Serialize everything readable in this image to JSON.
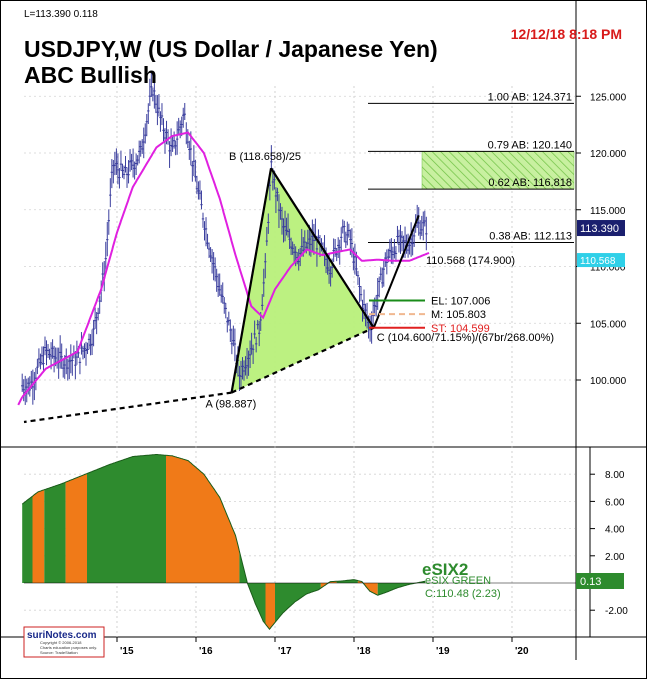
{
  "header": {
    "quote": "L=113.390  0.118",
    "timestamp": "12/12/18 8:18 PM",
    "title": "USDJPY,W (US Dollar / Japanese Yen)",
    "subtitle": "ABC Bullish"
  },
  "colors": {
    "candle": "#3b3f9e",
    "ma": "#e020e0",
    "triangle_fill": "#b8f07a",
    "green_fill": "#2e8b2e",
    "orange_fill": "#f07a18",
    "el_line": "#1a8c1a",
    "stop_line": "#e02020",
    "mid_line": "#f0b890",
    "price_badge": "#1a1f6e",
    "ma_badge": "#2fd0e8",
    "osc_badge": "#2e8b2e",
    "timestamp": "#d81b1b"
  },
  "chart_data": [
    {
      "type": "line",
      "name": "price-panel",
      "x": [
        "'15",
        "'16",
        "'17",
        "'18",
        "'19",
        "'20"
      ],
      "ylim": [
        98,
        127
      ],
      "yticks": [
        "100.000",
        "105.000",
        "110.000",
        "115.000",
        "120.000",
        "125.000"
      ],
      "series": [
        {
          "name": "USDJPY weekly",
          "points": [
            [
              2013.9,
              99.5
            ],
            [
              2014.1,
              102.5
            ],
            [
              2014.3,
              101.7
            ],
            [
              2014.5,
              101.8
            ],
            [
              2014.7,
              104
            ],
            [
              2014.85,
              110
            ],
            [
              2014.95,
              119
            ],
            [
              2015.1,
              118
            ],
            [
              2015.3,
              120
            ],
            [
              2015.45,
              125.8
            ],
            [
              2015.55,
              123
            ],
            [
              2015.7,
              120
            ],
            [
              2015.85,
              123.5
            ],
            [
              2016.0,
              117.5
            ],
            [
              2016.15,
              112.5
            ],
            [
              2016.3,
              108
            ],
            [
              2016.45,
              104
            ],
            [
              2016.55,
              100.5
            ],
            [
              2016.65,
              102
            ],
            [
              2016.8,
              104.5
            ],
            [
              2016.88,
              110
            ],
            [
              2016.95,
              118.7
            ],
            [
              2017.1,
              113.5
            ],
            [
              2017.3,
              111
            ],
            [
              2017.5,
              112.5
            ],
            [
              2017.7,
              110
            ],
            [
              2017.85,
              113
            ],
            [
              2017.95,
              112.5
            ],
            [
              2018.1,
              107
            ],
            [
              2018.2,
              104.6
            ],
            [
              2018.3,
              107.5
            ],
            [
              2018.4,
              110.5
            ],
            [
              2018.55,
              112
            ],
            [
              2018.7,
              112
            ],
            [
              2018.8,
              113.7
            ],
            [
              2018.93,
              113.4
            ]
          ]
        },
        {
          "name": "moving average",
          "points": [
            [
              2013.8,
              98.5
            ],
            [
              2014.1,
              101
            ],
            [
              2014.5,
              102.5
            ],
            [
              2014.8,
              108
            ],
            [
              2015.0,
              113
            ],
            [
              2015.2,
              117
            ],
            [
              2015.5,
              120.5
            ],
            [
              2015.7,
              121.5
            ],
            [
              2015.9,
              121.8
            ],
            [
              2016.1,
              120
            ],
            [
              2016.3,
              116
            ],
            [
              2016.5,
              111
            ],
            [
              2016.7,
              106.5
            ],
            [
              2016.85,
              105.5
            ],
            [
              2017.0,
              108
            ],
            [
              2017.2,
              110
            ],
            [
              2017.4,
              111.5
            ],
            [
              2017.6,
              111
            ],
            [
              2017.8,
              111.3
            ],
            [
              2017.95,
              111.5
            ],
            [
              2018.1,
              110.5
            ],
            [
              2018.3,
              110.6
            ],
            [
              2018.5,
              110.5
            ],
            [
              2018.7,
              110.5
            ],
            [
              2018.95,
              111.2
            ]
          ]
        }
      ],
      "pattern_points": [
        {
          "label": "A (98.887)",
          "x": 2016.45,
          "y": 98.887
        },
        {
          "label": "B (118.658)/25",
          "x": 2016.95,
          "y": 118.658
        },
        {
          "label": "C (104.600/71.15%)/(67br/268.00%)",
          "x": 2018.25,
          "y": 104.6
        }
      ],
      "levels": [
        {
          "label": "1.00 AB: 124.371",
          "value": 124.371
        },
        {
          "label": "0.79 AB: 120.140",
          "value": 120.14
        },
        {
          "label": "0.62 AB: 116.818",
          "value": 116.818
        },
        {
          "label": "0.38 AB: 112.113",
          "value": 112.113
        }
      ],
      "target_zone": [
        116.818,
        120.14
      ],
      "entry_lines": [
        {
          "label": "EL: 107.006",
          "value": 107.006
        },
        {
          "label": "M: 105.803",
          "value": 105.803
        },
        {
          "label": "ST: 104.599",
          "value": 104.599
        }
      ],
      "annotation": "110.568 (174.900)",
      "price_badge": "113.390",
      "ma_badge": "110.568"
    },
    {
      "type": "area",
      "name": "oscillator-panel",
      "ylim": [
        -3.8,
        9.8
      ],
      "yticks": [
        "-2.00",
        "2.00",
        "4.00",
        "6.00",
        "8.00"
      ],
      "series": [
        {
          "name": "eSIX GREEN",
          "points": [
            [
              2013.8,
              5.8
            ],
            [
              2014.0,
              6.7
            ],
            [
              2014.3,
              7.3
            ],
            [
              2014.6,
              8.0
            ],
            [
              2014.9,
              8.7
            ],
            [
              2015.2,
              9.3
            ],
            [
              2015.5,
              9.45
            ],
            [
              2015.7,
              9.35
            ],
            [
              2015.9,
              9.0
            ],
            [
              2016.1,
              8.0
            ],
            [
              2016.3,
              6.3
            ],
            [
              2016.5,
              3.5
            ],
            [
              2016.65,
              0.0
            ],
            [
              2016.75,
              -1.5
            ],
            [
              2016.85,
              -2.8
            ],
            [
              2016.93,
              -3.4
            ],
            [
              2017.0,
              -2.9
            ],
            [
              2017.1,
              -2.2
            ],
            [
              2017.25,
              -1.4
            ],
            [
              2017.4,
              -0.8
            ],
            [
              2017.55,
              -0.5
            ],
            [
              2017.7,
              0.1
            ],
            [
              2017.85,
              0.15
            ],
            [
              2018.0,
              0.25
            ],
            [
              2018.1,
              0.1
            ],
            [
              2018.2,
              -0.6
            ],
            [
              2018.3,
              -0.9
            ],
            [
              2018.4,
              -0.7
            ],
            [
              2018.55,
              -0.35
            ],
            [
              2018.7,
              -0.1
            ],
            [
              2018.9,
              0.13
            ]
          ]
        }
      ],
      "label": "eSIX2",
      "label_small": "eSIX GREEN",
      "reading": "C:110.48 (2.23)",
      "badge": "0.13"
    }
  ],
  "footer": {
    "brand": "suriNotes.com",
    "copyright": "Copyright © 2006-2018\nCharts education purposes only.\nSource: TradeStation"
  }
}
